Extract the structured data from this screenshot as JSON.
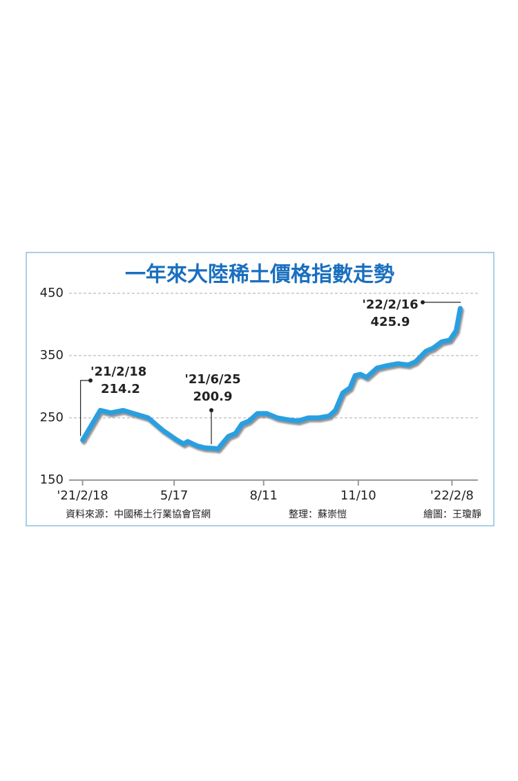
{
  "chart_data": {
    "type": "line",
    "title": "一年來大陸稀土價格指數走勢",
    "x": [
      "2021-02-18",
      "2021-03-07",
      "2021-03-17",
      "2021-03-29",
      "2021-04-12",
      "2021-04-22",
      "2021-04-29",
      "2021-05-06",
      "2021-05-19",
      "2021-05-26",
      "2021-05-30",
      "2021-06-08",
      "2021-06-15",
      "2021-06-25",
      "2021-06-28",
      "2021-07-08",
      "2021-07-15",
      "2021-07-21",
      "2021-07-28",
      "2021-08-05",
      "2021-08-14",
      "2021-08-24",
      "2021-09-03",
      "2021-09-13",
      "2021-09-23",
      "2021-10-03",
      "2021-10-13",
      "2021-10-19",
      "2021-10-26",
      "2021-11-02",
      "2021-11-07",
      "2021-11-12",
      "2021-11-18",
      "2021-11-28",
      "2021-12-08",
      "2021-12-18",
      "2021-12-28",
      "2022-01-04",
      "2022-01-14",
      "2022-01-21",
      "2022-01-29",
      "2022-02-06",
      "2022-02-12",
      "2022-02-16"
    ],
    "series": [
      {
        "color": "#2b9fe0",
        "values": [
          214.2,
          262,
          258,
          262,
          255,
          250,
          240,
          230,
          215,
          208,
          212,
          205,
          202,
          200.9,
          200,
          220,
          225,
          240,
          245,
          257,
          257,
          250,
          247,
          245,
          250,
          250,
          253,
          262,
          290,
          298,
          318,
          320,
          315,
          330,
          334,
          337,
          335,
          340,
          357,
          362,
          372,
          375,
          390,
          425.9
        ]
      }
    ],
    "xlim": [
      "2021-02-05",
      "2022-03-05"
    ],
    "xticks": [
      {
        "value": "2021-02-18",
        "label": "'21/2/18"
      },
      {
        "value": "2021-05-17",
        "label": "5/17"
      },
      {
        "value": "2021-08-11",
        "label": "8/11"
      },
      {
        "value": "2021-11-10",
        "label": "11/10"
      },
      {
        "value": "2022-02-08",
        "label": "'22/2/8"
      }
    ],
    "ylim": [
      150,
      470
    ],
    "yticks": [
      150,
      250,
      350,
      450
    ],
    "grid": true,
    "annotations": [
      {
        "x": "2021-02-18",
        "text": "'21/2/18"
      },
      {
        "x": "2021-06-25",
        "text": "'21/6/25"
      },
      {
        "x": "2022-02-16",
        "text": "'22/2/16"
      }
    ],
    "source": "資料來源：中國稀土行業協會官網",
    "editor": "整理：蘇崇愷",
    "graphics": "繪圖：王瓊靜"
  }
}
